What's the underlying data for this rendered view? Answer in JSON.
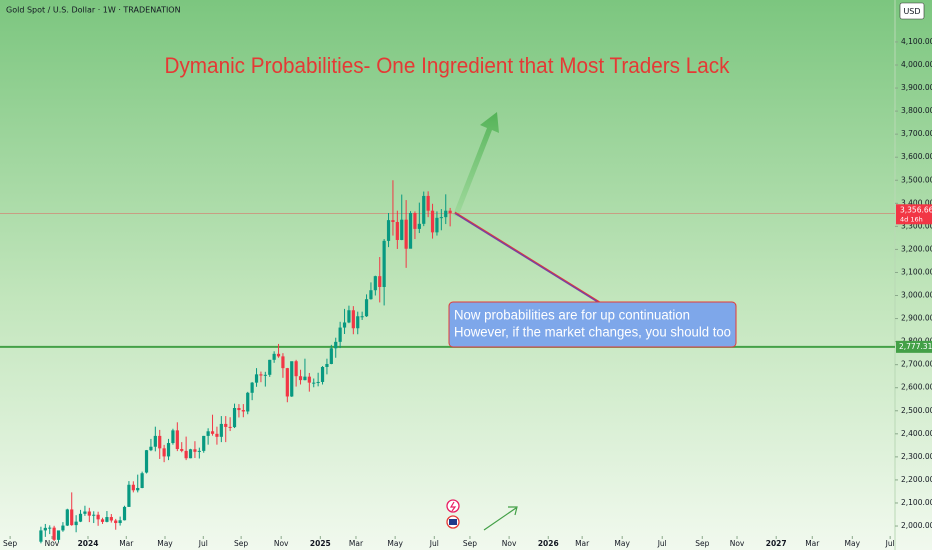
{
  "chart_data": {
    "type": "candlestick",
    "header": "Gold Spot / U.S. Dollar · 1W · TRADENATION",
    "title": "Dymanic Probabilities- One Ingredient that Most Traders Lack",
    "annotation": [
      "Now probabilities are for up continuation",
      "However, if the market changes, you should too"
    ],
    "currency": "USD",
    "up_color": "#089981",
    "down_color": "#f23645",
    "last_price": {
      "value": 3356.66,
      "label": "3,356.66"
    },
    "countdown": "4d 16h",
    "level": {
      "value": 2777.31,
      "label": "2,777.31"
    },
    "level_color": "#43a047",
    "xlim": [
      -2.3,
      201.1
    ],
    "ylim": [
      1896,
      4282
    ],
    "xticks": [
      {
        "value": 0,
        "label": "Sep"
      },
      {
        "value": 9.5,
        "label": "Nov"
      },
      {
        "value": 17.7,
        "label": "2024"
      },
      {
        "value": 26.4,
        "label": "Mar"
      },
      {
        "value": 35.2,
        "label": "May"
      },
      {
        "value": 43.9,
        "label": "Jul"
      },
      {
        "value": 52.5,
        "label": "Sep"
      },
      {
        "value": 61.6,
        "label": "Nov"
      },
      {
        "value": 70.5,
        "label": "2025"
      },
      {
        "value": 78.6,
        "label": "Mar"
      },
      {
        "value": 87.5,
        "label": "May"
      },
      {
        "value": 96.4,
        "label": "Jul"
      },
      {
        "value": 104.5,
        "label": "Sep"
      },
      {
        "value": 113.4,
        "label": "Nov"
      },
      {
        "value": 122.3,
        "label": "2026"
      },
      {
        "value": 130,
        "label": "Mar"
      },
      {
        "value": 139.1,
        "label": "May"
      },
      {
        "value": 148.2,
        "label": "Jul"
      },
      {
        "value": 157.3,
        "label": "Sep"
      },
      {
        "value": 165.2,
        "label": "Nov"
      },
      {
        "value": 174.1,
        "label": "2027"
      },
      {
        "value": 182.3,
        "label": "Mar"
      },
      {
        "value": 191.4,
        "label": "May"
      },
      {
        "value": 200,
        "label": "Jul"
      }
    ],
    "yticks": [
      {
        "value": 2000,
        "label": "2,000.00"
      },
      {
        "value": 2100,
        "label": "2,100.00"
      },
      {
        "value": 2200,
        "label": "2,200.00"
      },
      {
        "value": 2300,
        "label": "2,300.00"
      },
      {
        "value": 2400,
        "label": "2,400.00"
      },
      {
        "value": 2500,
        "label": "2,500.00"
      },
      {
        "value": 2600,
        "label": "2,600.00"
      },
      {
        "value": 2700,
        "label": "2,700.00"
      },
      {
        "value": 2800,
        "label": "2,800.00"
      },
      {
        "value": 2900,
        "label": "2,900.00"
      },
      {
        "value": 3000,
        "label": "3,000.00"
      },
      {
        "value": 3100,
        "label": "3,100.00"
      },
      {
        "value": 3200,
        "label": "3,200.00"
      },
      {
        "value": 3300,
        "label": "3,300.00"
      },
      {
        "value": 3400,
        "label": "3,400.00"
      },
      {
        "value": 3500,
        "label": "3,500.00"
      },
      {
        "value": 3600,
        "label": "3,600.00"
      },
      {
        "value": 3700,
        "label": "3,700.00"
      },
      {
        "value": 3800,
        "label": "3,800.00"
      },
      {
        "value": 3900,
        "label": "3,900.00"
      },
      {
        "value": 4000,
        "label": "4,000.00"
      },
      {
        "value": 4100,
        "label": "4,100.00"
      }
    ],
    "x": [
      7,
      8,
      9,
      10,
      11,
      12,
      13,
      14,
      15,
      16,
      17,
      18,
      19,
      20,
      21,
      22,
      23,
      24,
      25,
      26,
      27,
      28,
      29,
      30,
      31,
      32,
      33,
      34,
      35,
      36,
      37,
      38,
      39,
      40,
      41,
      42,
      43,
      44,
      45,
      46,
      47,
      48,
      49,
      50,
      51,
      52,
      53,
      54,
      55,
      56,
      57,
      58,
      59,
      60,
      61,
      62,
      63,
      64,
      65,
      66,
      67,
      68,
      69,
      70,
      71,
      72,
      73,
      74,
      75,
      76,
      77,
      78,
      79,
      80,
      81,
      82,
      83,
      84,
      85,
      86,
      87,
      88,
      89,
      90,
      91,
      92,
      93,
      94,
      95,
      96,
      97,
      98,
      99,
      100
    ],
    "candles": [
      [
        1932,
        1997,
        1925,
        1981
      ],
      [
        1981,
        2009,
        1953,
        1992
      ],
      [
        1992,
        2003,
        1965,
        1993
      ],
      [
        1993,
        2001,
        1935,
        1940
      ],
      [
        1940,
        1965,
        1931,
        1981
      ],
      [
        1981,
        2017,
        1975,
        2002
      ],
      [
        2002,
        2075,
        2000,
        2072
      ],
      [
        2072,
        2146,
        2001,
        2004
      ],
      [
        2004,
        2047,
        1973,
        2019
      ],
      [
        2019,
        2070,
        2017,
        2053
      ],
      [
        2053,
        2088,
        2044,
        2063
      ],
      [
        2063,
        2079,
        2017,
        2045
      ],
      [
        2045,
        2064,
        2013,
        2049
      ],
      [
        2049,
        2062,
        2001,
        2029
      ],
      [
        2029,
        2036,
        2009,
        2018
      ],
      [
        2018,
        2065,
        2016,
        2039
      ],
      [
        2039,
        2052,
        2015,
        2024
      ],
      [
        2024,
        2031,
        1984,
        2013
      ],
      [
        2013,
        2041,
        2002,
        2025
      ],
      [
        2025,
        2088,
        2024,
        2083
      ],
      [
        2083,
        2195,
        2083,
        2179
      ],
      [
        2179,
        2194,
        2146,
        2155
      ],
      [
        2155,
        2223,
        2146,
        2165
      ],
      [
        2165,
        2236,
        2164,
        2229
      ],
      [
        2232,
        2330,
        2228,
        2329
      ],
      [
        2329,
        2378,
        2325,
        2344
      ],
      [
        2344,
        2431,
        2324,
        2391
      ],
      [
        2391,
        2417,
        2291,
        2337
      ],
      [
        2337,
        2352,
        2277,
        2302
      ],
      [
        2302,
        2378,
        2286,
        2360
      ],
      [
        2360,
        2422,
        2353,
        2415
      ],
      [
        2415,
        2450,
        2325,
        2334
      ],
      [
        2334,
        2364,
        2320,
        2326
      ],
      [
        2326,
        2388,
        2286,
        2294
      ],
      [
        2294,
        2335,
        2294,
        2333
      ],
      [
        2333,
        2368,
        2295,
        2322
      ],
      [
        2322,
        2340,
        2293,
        2326
      ],
      [
        2326,
        2391,
        2318,
        2391
      ],
      [
        2391,
        2424,
        2353,
        2411
      ],
      [
        2411,
        2483,
        2392,
        2400
      ],
      [
        2400,
        2431,
        2353,
        2387
      ],
      [
        2387,
        2477,
        2364,
        2443
      ],
      [
        2443,
        2477,
        2364,
        2430
      ],
      [
        2430,
        2472,
        2412,
        2429
      ],
      [
        2429,
        2531,
        2425,
        2512
      ],
      [
        2512,
        2529,
        2471,
        2503
      ],
      [
        2503,
        2529,
        2472,
        2497
      ],
      [
        2497,
        2582,
        2485,
        2578
      ],
      [
        2578,
        2625,
        2546,
        2622
      ],
      [
        2622,
        2685,
        2604,
        2658
      ],
      [
        2658,
        2670,
        2624,
        2653
      ],
      [
        2653,
        2669,
        2605,
        2656
      ],
      [
        2656,
        2721,
        2647,
        2721
      ],
      [
        2721,
        2758,
        2708,
        2747
      ],
      [
        2747,
        2790,
        2730,
        2736
      ],
      [
        2736,
        2750,
        2643,
        2685
      ],
      [
        2685,
        2686,
        2537,
        2562
      ],
      [
        2562,
        2712,
        2560,
        2715
      ],
      [
        2715,
        2721,
        2605,
        2650
      ],
      [
        2650,
        2678,
        2614,
        2633
      ],
      [
        2633,
        2726,
        2632,
        2648
      ],
      [
        2648,
        2664,
        2583,
        2622
      ],
      [
        2622,
        2640,
        2602,
        2622
      ],
      [
        2622,
        2665,
        2606,
        2625
      ],
      [
        2625,
        2694,
        2614,
        2690
      ],
      [
        2690,
        2726,
        2658,
        2703
      ],
      [
        2703,
        2786,
        2702,
        2771
      ],
      [
        2771,
        2817,
        2730,
        2799
      ],
      [
        2799,
        2886,
        2772,
        2861
      ],
      [
        2861,
        2942,
        2833,
        2883
      ],
      [
        2883,
        2956,
        2880,
        2936
      ],
      [
        2936,
        2954,
        2832,
        2858
      ],
      [
        2858,
        2930,
        2832,
        2910
      ],
      [
        2910,
        2930,
        2894,
        2910
      ],
      [
        2910,
        3005,
        2907,
        2984
      ],
      [
        2984,
        3057,
        2982,
        3023
      ],
      [
        3023,
        3086,
        3000,
        3084
      ],
      [
        3084,
        3167,
        2970,
        3037
      ],
      [
        3037,
        3245,
        2957,
        3237
      ],
      [
        3237,
        3358,
        3210,
        3327
      ],
      [
        3327,
        3500,
        3260,
        3319
      ],
      [
        3319,
        3368,
        3202,
        3241
      ],
      [
        3241,
        3438,
        3240,
        3329
      ],
      [
        3329,
        3414,
        3120,
        3203
      ],
      [
        3203,
        3366,
        3204,
        3358
      ],
      [
        3358,
        3365,
        3245,
        3289
      ],
      [
        3289,
        3403,
        3271,
        3311
      ],
      [
        3311,
        3451,
        3301,
        3432
      ],
      [
        3432,
        3452,
        3340,
        3368
      ],
      [
        3368,
        3398,
        3247,
        3274
      ],
      [
        3274,
        3365,
        3260,
        3337
      ],
      [
        3337,
        3375,
        3283,
        3340
      ],
      [
        3340,
        3439,
        3310,
        3368
      ],
      [
        3368,
        3380,
        3300,
        3356.66
      ]
    ]
  }
}
